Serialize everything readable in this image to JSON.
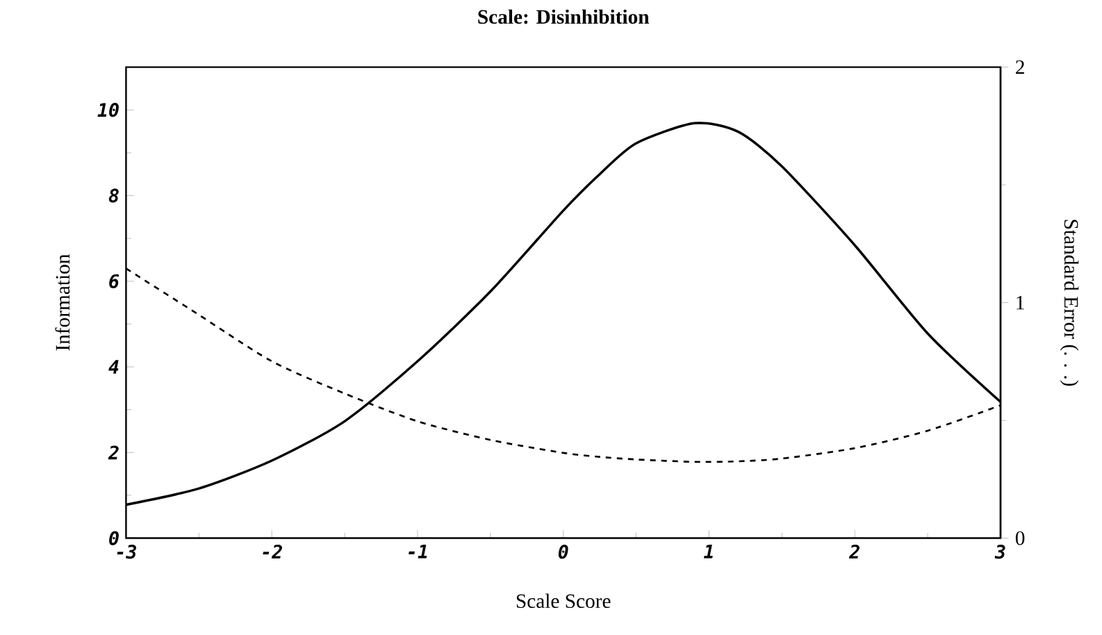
{
  "chart_data": {
    "type": "line",
    "title": "Scale: Disinhibition",
    "xlabel": "Scale Score",
    "ylabel": "Information",
    "y2label": "Standard Error (. . .)",
    "x": [
      -3,
      -2.5,
      -2,
      -1.5,
      -1,
      -0.5,
      0,
      0.25,
      0.5,
      0.9,
      1.2,
      1.5,
      2,
      2.5,
      3
    ],
    "series": [
      {
        "color": "#000000",
        "line_style": "solid",
        "values": [
          0.78,
          1.16,
          1.81,
          2.73,
          4.13,
          5.76,
          7.65,
          8.5,
          9.22,
          9.69,
          9.49,
          8.68,
          6.84,
          4.78,
          3.18
        ]
      },
      {
        "color": "#000000",
        "line_style": "dashed",
        "axis": "y2",
        "values": [
          1.145,
          0.948,
          0.751,
          0.614,
          0.496,
          0.417,
          0.362,
          0.345,
          0.334,
          0.324,
          0.326,
          0.338,
          0.382,
          0.456,
          0.564
        ]
      }
    ],
    "xlim": [
      -3,
      3
    ],
    "xticks": [
      -3,
      -2,
      -1,
      0,
      1,
      2,
      3
    ],
    "ylim": [
      0,
      11
    ],
    "yticks": [
      0,
      2,
      4,
      6,
      8,
      10
    ],
    "y2lim": [
      0,
      2
    ],
    "y2ticks": [
      0,
      1,
      2
    ]
  }
}
